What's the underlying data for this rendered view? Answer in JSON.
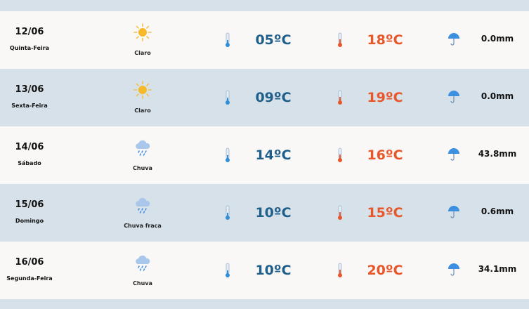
{
  "colors": {
    "min_temp": "#1f5f8b",
    "max_temp": "#e8562a",
    "row_light": "#faf8f6",
    "row_alt": "#d6e1ea"
  },
  "days": [
    {
      "date": "12/06",
      "weekday": "Quinta-Feira",
      "icon": "sun-icon",
      "condition": "Claro",
      "min": "05ºC",
      "max": "18ºC",
      "rain": "0.0mm"
    },
    {
      "date": "13/06",
      "weekday": "Sexta-Feira",
      "icon": "sun-icon",
      "condition": "Claro",
      "min": "09ºC",
      "max": "19ºC",
      "rain": "0.0mm"
    },
    {
      "date": "14/06",
      "weekday": "Sábado",
      "icon": "rain-cloud-icon",
      "condition": "Chuva",
      "min": "14ºC",
      "max": "16ºC",
      "rain": "43.8mm"
    },
    {
      "date": "15/06",
      "weekday": "Domingo",
      "icon": "rain-cloud-icon",
      "condition": "Chuva fraca",
      "min": "10ºC",
      "max": "15ºC",
      "rain": "0.6mm"
    },
    {
      "date": "16/06",
      "weekday": "Segunda-Feira",
      "icon": "rain-cloud-icon",
      "condition": "Chuva",
      "min": "10ºC",
      "max": "20ºC",
      "rain": "34.1mm"
    }
  ]
}
